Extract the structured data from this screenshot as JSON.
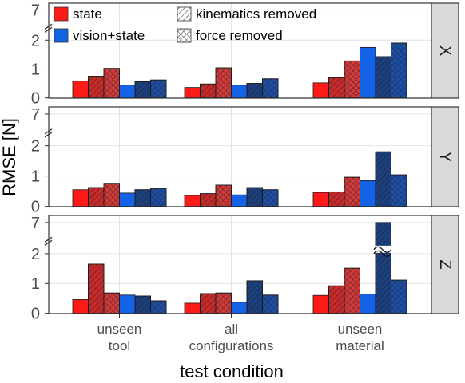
{
  "chart_data": {
    "type": "bar",
    "xlabel": "test condition",
    "ylabel": "RMSE [N]",
    "categories": [
      "unseen\ntool",
      "all\nconfigurations",
      "unseen\nmaterial"
    ],
    "y_scale": "broken",
    "y_ticks": [
      "0",
      "1",
      "2",
      "7"
    ],
    "y_break_between": [
      2,
      7
    ],
    "legend_position": "top-left",
    "grid": true,
    "legend": [
      {
        "label": "state",
        "color": "#ff1a1a",
        "pattern": "none"
      },
      {
        "label": "vision+state",
        "color": "#1463e6",
        "pattern": "none"
      },
      {
        "label": "kinematics removed",
        "color": "#ffffff",
        "pattern": "diagonal"
      },
      {
        "label": "force removed",
        "color": "#ffffff",
        "pattern": "crosshatch"
      }
    ],
    "series": [
      {
        "input": "state",
        "ablation": "none",
        "color": "#ff1a1a",
        "pattern": "none"
      },
      {
        "input": "state",
        "ablation": "kinematics",
        "color": "#c82a2a",
        "pattern": "diagonal"
      },
      {
        "input": "state",
        "ablation": "force",
        "color": "#d53a3a",
        "pattern": "crosshatch"
      },
      {
        "input": "vision+state",
        "ablation": "none",
        "color": "#1463e6",
        "pattern": "none"
      },
      {
        "input": "vision+state",
        "ablation": "kinematics",
        "color": "#1c3f7d",
        "pattern": "diagonal"
      },
      {
        "input": "vision+state",
        "ablation": "force",
        "color": "#1e4fa8",
        "pattern": "crosshatch"
      }
    ],
    "panels": [
      {
        "strip": "X",
        "values": [
          [
            0.58,
            0.75,
            1.02,
            0.44,
            0.56,
            0.62
          ],
          [
            0.36,
            0.48,
            1.04,
            0.44,
            0.5,
            0.66
          ],
          [
            0.52,
            0.7,
            1.28,
            1.75,
            1.43,
            1.9
          ]
        ]
      },
      {
        "strip": "Y",
        "values": [
          [
            0.55,
            0.62,
            0.76,
            0.44,
            0.55,
            0.58
          ],
          [
            0.36,
            0.42,
            0.7,
            0.38,
            0.62,
            0.55
          ],
          [
            0.46,
            0.48,
            0.96,
            0.85,
            1.8,
            1.04
          ]
        ]
      },
      {
        "strip": "Z",
        "values": [
          [
            0.46,
            1.65,
            0.68,
            0.61,
            0.58,
            0.42
          ],
          [
            0.34,
            0.66,
            0.68,
            0.37,
            1.09,
            0.61
          ],
          [
            0.6,
            0.92,
            1.51,
            0.64,
            7.0,
            1.11
          ]
        ]
      }
    ]
  }
}
